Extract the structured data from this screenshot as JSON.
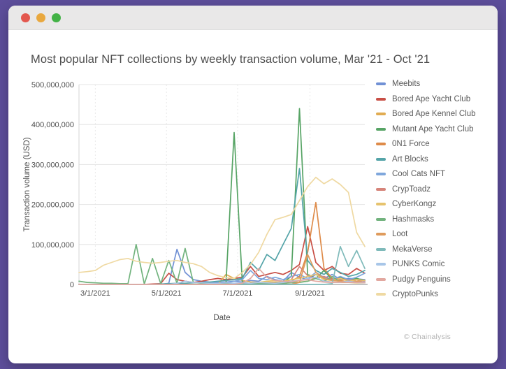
{
  "window": {
    "controls": {
      "close": "close",
      "minimize": "minimize",
      "zoom": "zoom"
    }
  },
  "header": {
    "title": "Most popular NFT collections by weekly transaction volume, Mar '21 - Oct '21"
  },
  "footer": {
    "credit": "© Chainalysis"
  },
  "chart_data": {
    "type": "line",
    "title": "Most popular NFT collections by weekly transaction volume, Mar '21 - Oct '21",
    "xlabel": "Date",
    "ylabel": "Transaction volume (USD)",
    "unit": "USD",
    "values_scale": "millions of USD",
    "grid": "on",
    "legend_position": "right",
    "x_ticks": [
      "3/1/2021",
      "5/1/2021",
      "7/1/2021",
      "9/1/2021"
    ],
    "y_ticks_millions": [
      0,
      100,
      200,
      300,
      400,
      500
    ],
    "ylim_millions": [
      0,
      500
    ],
    "dates": [
      "2/15",
      "2/22",
      "3/1",
      "3/8",
      "3/15",
      "3/22",
      "3/29",
      "4/5",
      "4/12",
      "4/19",
      "4/26",
      "5/3",
      "5/10",
      "5/17",
      "5/24",
      "5/31",
      "6/7",
      "6/14",
      "6/21",
      "6/28",
      "7/5",
      "7/12",
      "7/19",
      "7/26",
      "8/2",
      "8/9",
      "8/16",
      "8/23",
      "8/30",
      "9/6",
      "9/13",
      "9/20",
      "9/27",
      "10/4",
      "10/11",
      "10/18"
    ],
    "series": [
      {
        "name": "Meebits",
        "color": "#7191d5",
        "values_millions": [
          0,
          0,
          0,
          0,
          0,
          0,
          0,
          0,
          0,
          0,
          0,
          3,
          88,
          30,
          12,
          8,
          6,
          5,
          6,
          8,
          6,
          10,
          8,
          20,
          12,
          8,
          30,
          18,
          12,
          25,
          15,
          25,
          12,
          15,
          14,
          12
        ]
      },
      {
        "name": "Bored Ape Yacht Club",
        "color": "#c84f46",
        "values_millions": [
          0,
          0,
          0,
          0,
          0,
          0,
          0,
          0,
          0,
          1,
          2,
          28,
          12,
          8,
          5,
          8,
          12,
          15,
          12,
          15,
          18,
          45,
          20,
          25,
          30,
          25,
          35,
          50,
          145,
          55,
          35,
          45,
          28,
          25,
          40,
          28
        ]
      },
      {
        "name": "Bored Ape Kennel Club",
        "color": "#e1ac52",
        "values_millions": [
          0,
          0,
          0,
          0,
          0,
          0,
          0,
          0,
          0,
          0,
          0,
          0,
          0,
          0,
          0,
          0,
          0,
          0,
          25,
          15,
          10,
          6,
          5,
          5,
          6,
          5,
          5,
          6,
          8,
          18,
          8,
          6,
          5,
          5,
          4,
          4
        ]
      },
      {
        "name": "Mutant Ape Yacht Club",
        "color": "#57a465",
        "values_millions": [
          0,
          0,
          0,
          0,
          0,
          0,
          0,
          0,
          0,
          0,
          0,
          0,
          0,
          0,
          0,
          0,
          0,
          0,
          2,
          380,
          5,
          2,
          2,
          2,
          3,
          5,
          20,
          440,
          25,
          15,
          35,
          12,
          18,
          12,
          15,
          10
        ]
      },
      {
        "name": "0N1 Force",
        "color": "#de8b49",
        "values_millions": [
          0,
          0,
          0,
          0,
          0,
          0,
          0,
          0,
          0,
          0,
          0,
          0,
          0,
          0,
          0,
          0,
          0,
          0,
          0,
          0,
          0,
          0,
          0,
          0,
          0,
          0,
          8,
          20,
          80,
          205,
          40,
          15,
          10,
          12,
          8,
          10
        ]
      },
      {
        "name": "Art Blocks",
        "color": "#54a4a8",
        "values_millions": [
          0,
          0,
          0,
          0,
          0,
          0,
          0,
          0,
          0,
          0,
          1,
          2,
          3,
          3,
          4,
          5,
          6,
          8,
          10,
          12,
          15,
          55,
          35,
          75,
          60,
          100,
          140,
          290,
          60,
          35,
          25,
          40,
          30,
          20,
          25,
          35
        ]
      },
      {
        "name": "Cool Cats NFT",
        "color": "#7fa7dc",
        "values_millions": [
          0,
          0,
          0,
          0,
          0,
          0,
          0,
          0,
          0,
          0,
          0,
          0,
          0,
          0,
          0,
          0,
          0,
          0,
          3,
          8,
          12,
          35,
          15,
          12,
          18,
          12,
          20,
          25,
          15,
          30,
          18,
          12,
          20,
          12,
          18,
          28
        ]
      },
      {
        "name": "CrypToadz",
        "color": "#d6847a",
        "values_millions": [
          0,
          0,
          0,
          0,
          0,
          0,
          0,
          0,
          0,
          0,
          0,
          0,
          0,
          0,
          0,
          0,
          0,
          0,
          0,
          0,
          0,
          0,
          0,
          0,
          0,
          5,
          12,
          45,
          22,
          15,
          20,
          12,
          15,
          10,
          12,
          8
        ]
      },
      {
        "name": "CyberKongz",
        "color": "#e6c36e",
        "values_millions": [
          0,
          0,
          0,
          0,
          0,
          0,
          0,
          0,
          0,
          0,
          0,
          0,
          0,
          0,
          0,
          0,
          0,
          0,
          0,
          0,
          0,
          3,
          5,
          8,
          10,
          8,
          12,
          15,
          20,
          25,
          12,
          10,
          15,
          8,
          12,
          10
        ]
      },
      {
        "name": "Hashmasks",
        "color": "#72b37e",
        "values_millions": [
          8,
          5,
          4,
          3,
          3,
          2,
          2,
          100,
          1,
          65,
          2,
          60,
          3,
          90,
          5,
          3,
          2,
          2,
          2,
          2,
          2,
          2,
          2,
          3,
          3,
          3,
          4,
          5,
          8,
          15,
          8,
          20,
          6,
          8,
          5,
          4
        ]
      },
      {
        "name": "Loot",
        "color": "#df9b5c",
        "values_millions": [
          0,
          0,
          0,
          0,
          0,
          0,
          0,
          0,
          0,
          0,
          0,
          0,
          0,
          0,
          0,
          0,
          0,
          0,
          0,
          0,
          0,
          0,
          0,
          0,
          0,
          0,
          0,
          5,
          75,
          30,
          15,
          10,
          8,
          6,
          8,
          5
        ]
      },
      {
        "name": "MekaVerse",
        "color": "#7fbaba",
        "values_millions": [
          0,
          0,
          0,
          0,
          0,
          0,
          0,
          0,
          0,
          0,
          0,
          0,
          0,
          0,
          0,
          0,
          0,
          0,
          0,
          0,
          0,
          0,
          0,
          0,
          0,
          0,
          0,
          0,
          0,
          0,
          0,
          2,
          95,
          45,
          85,
          40
        ]
      },
      {
        "name": "PUNKS Comic",
        "color": "#a8c6e8",
        "values_millions": [
          0,
          0,
          0,
          0,
          0,
          0,
          0,
          0,
          0,
          0,
          0,
          0,
          3,
          8,
          5,
          4,
          3,
          3,
          4,
          3,
          4,
          3,
          5,
          4,
          3,
          5,
          8,
          10,
          15,
          18,
          8,
          6,
          5,
          8,
          5,
          6
        ]
      },
      {
        "name": "Pudgy Penguins",
        "color": "#e2a8a0",
        "values_millions": [
          0,
          0,
          0,
          0,
          0,
          0,
          0,
          0,
          0,
          0,
          0,
          0,
          0,
          0,
          0,
          0,
          0,
          0,
          0,
          0,
          3,
          15,
          40,
          18,
          10,
          8,
          6,
          10,
          12,
          8,
          6,
          5,
          6,
          5,
          5,
          4
        ]
      },
      {
        "name": "CryptoPunks",
        "color": "#efd9a2",
        "values_millions": [
          30,
          32,
          35,
          48,
          55,
          62,
          65,
          58,
          55,
          53,
          55,
          58,
          60,
          55,
          52,
          45,
          30,
          22,
          17,
          15,
          30,
          50,
          80,
          125,
          162,
          168,
          175,
          210,
          245,
          268,
          252,
          264,
          250,
          230,
          130,
          95
        ]
      }
    ]
  }
}
